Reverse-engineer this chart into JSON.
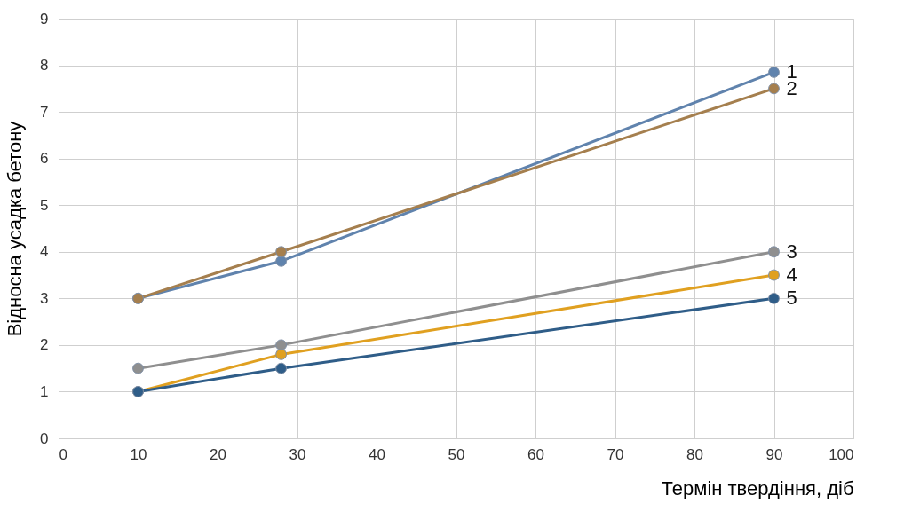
{
  "chart_data": {
    "type": "line",
    "xlabel": "Термін твердіння, діб",
    "ylabel": "Відносна усадка бетону",
    "x": [
      10,
      28,
      90
    ],
    "series": [
      {
        "name": "1",
        "color": "#6083ad",
        "values": [
          3,
          3.8,
          7.85
        ]
      },
      {
        "name": "2",
        "color": "#a57f4e",
        "values": [
          3,
          4,
          7.5
        ]
      },
      {
        "name": "3",
        "color": "#8f8f8f",
        "values": [
          1.5,
          2,
          4
        ]
      },
      {
        "name": "4",
        "color": "#e0a020",
        "values": [
          1,
          1.8,
          3.5
        ]
      },
      {
        "name": "5",
        "color": "#2f5d88",
        "values": [
          1,
          1.5,
          3
        ]
      }
    ],
    "xlim": [
      0,
      100
    ],
    "xticks": [
      0,
      10,
      20,
      30,
      40,
      50,
      60,
      70,
      80,
      90,
      100
    ],
    "ylim": [
      0,
      9
    ],
    "yticks": [
      0,
      1,
      2,
      3,
      4,
      5,
      6,
      7,
      8,
      9
    ],
    "grid": true,
    "marker": "circle",
    "line_style": "solid"
  }
}
